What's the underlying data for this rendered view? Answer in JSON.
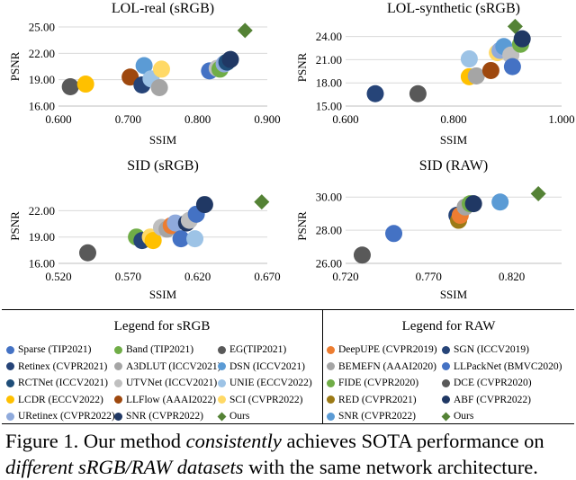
{
  "figure": {
    "caption_prefix": "Figure 1. Our method ",
    "caption_em1": "consistently",
    "caption_mid": " achieves SOTA performance on ",
    "caption_em2": "different sRGB/RAW datasets",
    "caption_suffix": " with the same network architecture."
  },
  "legend": {
    "srgb_title": "Legend for sRGB",
    "raw_title": "Legend for RAW",
    "srgb_items": [
      {
        "label": "Sparse (TIP2021)",
        "color": "#4472C4",
        "marker": "circle"
      },
      {
        "label": "Band (TIP2021)",
        "color": "#70AD47",
        "marker": "circle"
      },
      {
        "label": "EG(TIP2021)",
        "color": "#595959",
        "marker": "circle"
      },
      {
        "label": "Retinex (CVPR2021)",
        "color": "#264478",
        "marker": "circle"
      },
      {
        "label": "A3DLUT (ICCV2021)",
        "color": "#A5A5A5",
        "marker": "circle"
      },
      {
        "label": "DSN (ICCV2021)",
        "color": "#5B9BD5",
        "marker": "circle"
      },
      {
        "label": "RCTNet (ICCV2021)",
        "color": "#1F4E79",
        "marker": "circle"
      },
      {
        "label": "UTVNet (ICCV2021)",
        "color": "#BFBFBF",
        "marker": "circle"
      },
      {
        "label": "UNIE (ECCV2022)",
        "color": "#9DC3E6",
        "marker": "circle"
      },
      {
        "label": "LCDR (ECCV2022)",
        "color": "#FFC000",
        "marker": "circle"
      },
      {
        "label": "LLFlow (AAAI2022)",
        "color": "#9E480E",
        "marker": "circle"
      },
      {
        "label": "SCI (CVPR2022)",
        "color": "#FFD966",
        "marker": "circle"
      },
      {
        "label": "URetinex (CVPR2022)",
        "color": "#8FAADC",
        "marker": "circle"
      },
      {
        "label": "SNR (CVPR2022)",
        "color": "#203864",
        "marker": "circle"
      },
      {
        "label": "Ours",
        "color": "#548235",
        "marker": "diamond"
      }
    ],
    "raw_items": [
      {
        "label": "DeepUPE (CVPR2019)",
        "color": "#ED7D31",
        "marker": "circle"
      },
      {
        "label": "SGN (ICCV2019)",
        "color": "#264478",
        "marker": "circle"
      },
      {
        "label": "BEMEFN (AAAI2020)",
        "color": "#A5A5A5",
        "marker": "circle"
      },
      {
        "label": "LLPackNet (BMVC2020)",
        "color": "#4472C4",
        "marker": "circle"
      },
      {
        "label": "FIDE (CVPR2020)",
        "color": "#70AD47",
        "marker": "circle"
      },
      {
        "label": "DCE (CVPR2020)",
        "color": "#595959",
        "marker": "circle"
      },
      {
        "label": "RED (CVPR2021)",
        "color": "#9C7A16",
        "marker": "circle"
      },
      {
        "label": "ABF (CVPR2022)",
        "color": "#203864",
        "marker": "circle"
      },
      {
        "label": "SNR (CVPR2022)",
        "color": "#5B9BD5",
        "marker": "circle"
      },
      {
        "label": "Ours",
        "color": "#548235",
        "marker": "diamond"
      }
    ]
  },
  "chart_data": [
    {
      "type": "scatter",
      "title": "LOL-real (sRGB)",
      "xlabel": "SSIM",
      "ylabel": "PSNR",
      "xlim": [
        0.6,
        0.9
      ],
      "ylim": [
        16,
        25
      ],
      "xticks": [
        0.6,
        0.7,
        0.8,
        0.9
      ],
      "yticks": [
        16,
        19,
        22,
        25
      ],
      "xtick_labels": [
        "0.600",
        "0.700",
        "0.800",
        "0.900"
      ],
      "ytick_labels": [
        "16.00",
        "19.00",
        "22.00",
        "25.00"
      ],
      "points": [
        {
          "x": 0.617,
          "y": 18.2,
          "color": "#595959"
        },
        {
          "x": 0.639,
          "y": 18.5,
          "color": "#FFC000"
        },
        {
          "x": 0.703,
          "y": 19.3,
          "color": "#9E480E"
        },
        {
          "x": 0.72,
          "y": 18.4,
          "color": "#264478"
        },
        {
          "x": 0.723,
          "y": 20.6,
          "color": "#5B9BD5"
        },
        {
          "x": 0.733,
          "y": 19.1,
          "color": "#9DC3E6"
        },
        {
          "x": 0.745,
          "y": 18.1,
          "color": "#A5A5A5"
        },
        {
          "x": 0.748,
          "y": 20.2,
          "color": "#FFD966"
        },
        {
          "x": 0.817,
          "y": 20.0,
          "color": "#4472C4"
        },
        {
          "x": 0.828,
          "y": 20.3,
          "color": "#BFBFBF"
        },
        {
          "x": 0.832,
          "y": 20.2,
          "color": "#70AD47"
        },
        {
          "x": 0.838,
          "y": 20.8,
          "color": "#8FAADC"
        },
        {
          "x": 0.842,
          "y": 21.0,
          "color": "#1F4E79"
        },
        {
          "x": 0.847,
          "y": 21.3,
          "color": "#203864"
        },
        {
          "x": 0.868,
          "y": 24.6,
          "color": "#548235",
          "marker": "diamond"
        }
      ]
    },
    {
      "type": "scatter",
      "title": "LOL-synthetic (sRGB)",
      "xlabel": "SSIM",
      "ylabel": "PSNR",
      "xlim": [
        0.6,
        1.0
      ],
      "ylim": [
        15,
        25
      ],
      "xticks": [
        0.6,
        0.8,
        1.0
      ],
      "yticks": [
        15,
        18,
        21,
        24
      ],
      "xtick_labels": [
        "0.600",
        "0.800",
        "1.000"
      ],
      "ytick_labels": [
        "15.00",
        "18.00",
        "21.00",
        "24.00"
      ],
      "points": [
        {
          "x": 0.655,
          "y": 16.6,
          "color": "#264478"
        },
        {
          "x": 0.734,
          "y": 16.6,
          "color": "#595959"
        },
        {
          "x": 0.829,
          "y": 21.1,
          "color": "#9DC3E6"
        },
        {
          "x": 0.829,
          "y": 18.8,
          "color": "#FFC000"
        },
        {
          "x": 0.842,
          "y": 18.9,
          "color": "#A5A5A5"
        },
        {
          "x": 0.869,
          "y": 19.6,
          "color": "#9E480E"
        },
        {
          "x": 0.881,
          "y": 21.9,
          "color": "#FFD966"
        },
        {
          "x": 0.886,
          "y": 22.2,
          "color": "#8FAADC"
        },
        {
          "x": 0.893,
          "y": 22.7,
          "color": "#5B9BD5"
        },
        {
          "x": 0.906,
          "y": 21.6,
          "color": "#BFBFBF"
        },
        {
          "x": 0.909,
          "y": 20.1,
          "color": "#4472C4"
        },
        {
          "x": 0.914,
          "y": 25.3,
          "color": "#548235",
          "marker": "diamond"
        },
        {
          "x": 0.924,
          "y": 23.0,
          "color": "#70AD47"
        },
        {
          "x": 0.927,
          "y": 23.7,
          "color": "#203864"
        }
      ]
    },
    {
      "type": "scatter",
      "title": "SID (sRGB)",
      "xlabel": "SSIM",
      "ylabel": "PSNR",
      "xlim": [
        0.52,
        0.67
      ],
      "ylim": [
        16,
        24.5
      ],
      "xticks": [
        0.52,
        0.57,
        0.62,
        0.67
      ],
      "yticks": [
        16,
        19,
        22
      ],
      "xtick_labels": [
        "0.520",
        "0.570",
        "0.620",
        "0.670"
      ],
      "ytick_labels": [
        "16.00",
        "19.00",
        "22.00"
      ],
      "points": [
        {
          "x": 0.541,
          "y": 17.2,
          "color": "#595959"
        },
        {
          "x": 0.576,
          "y": 19.0,
          "color": "#70AD47"
        },
        {
          "x": 0.58,
          "y": 18.6,
          "color": "#264478"
        },
        {
          "x": 0.586,
          "y": 19.0,
          "color": "#FFD966"
        },
        {
          "x": 0.588,
          "y": 18.6,
          "color": "#FFC000"
        },
        {
          "x": 0.594,
          "y": 20.1,
          "color": "#BFBFBF"
        },
        {
          "x": 0.598,
          "y": 19.9,
          "color": "#A5A5A5"
        },
        {
          "x": 0.601,
          "y": 20.3,
          "color": "#ED7D31"
        },
        {
          "x": 0.604,
          "y": 20.6,
          "color": "#8FAADC"
        },
        {
          "x": 0.608,
          "y": 18.8,
          "color": "#4472C4"
        },
        {
          "x": 0.612,
          "y": 20.6,
          "color": "#203864"
        },
        {
          "x": 0.614,
          "y": 20.9,
          "color": "#BFBFBF"
        },
        {
          "x": 0.618,
          "y": 18.8,
          "color": "#9DC3E6"
        },
        {
          "x": 0.619,
          "y": 21.6,
          "color": "#4472C4"
        },
        {
          "x": 0.625,
          "y": 22.7,
          "color": "#203864"
        },
        {
          "x": 0.666,
          "y": 23.0,
          "color": "#548235",
          "marker": "diamond"
        }
      ]
    },
    {
      "type": "scatter",
      "title": "SID (RAW)",
      "xlabel": "SSIM",
      "ylabel": "PSNR",
      "xlim": [
        0.72,
        0.85
      ],
      "ylim": [
        26,
        30.5
      ],
      "xticks": [
        0.72,
        0.77,
        0.82
      ],
      "yticks": [
        26,
        28,
        30
      ],
      "xtick_labels": [
        "0.720",
        "0.770",
        "0.820"
      ],
      "ytick_labels": [
        "26.00",
        "28.00",
        "30.00"
      ],
      "points": [
        {
          "x": 0.73,
          "y": 26.5,
          "color": "#595959"
        },
        {
          "x": 0.749,
          "y": 27.8,
          "color": "#4472C4"
        },
        {
          "x": 0.787,
          "y": 28.9,
          "color": "#264478"
        },
        {
          "x": 0.788,
          "y": 28.6,
          "color": "#9C7A16"
        },
        {
          "x": 0.789,
          "y": 28.9,
          "color": "#ED7D31"
        },
        {
          "x": 0.792,
          "y": 29.4,
          "color": "#A5A5A5"
        },
        {
          "x": 0.795,
          "y": 29.6,
          "color": "#70AD47"
        },
        {
          "x": 0.797,
          "y": 29.6,
          "color": "#203864"
        },
        {
          "x": 0.813,
          "y": 29.7,
          "color": "#5B9BD5"
        },
        {
          "x": 0.836,
          "y": 30.2,
          "color": "#548235",
          "marker": "diamond"
        }
      ]
    }
  ]
}
